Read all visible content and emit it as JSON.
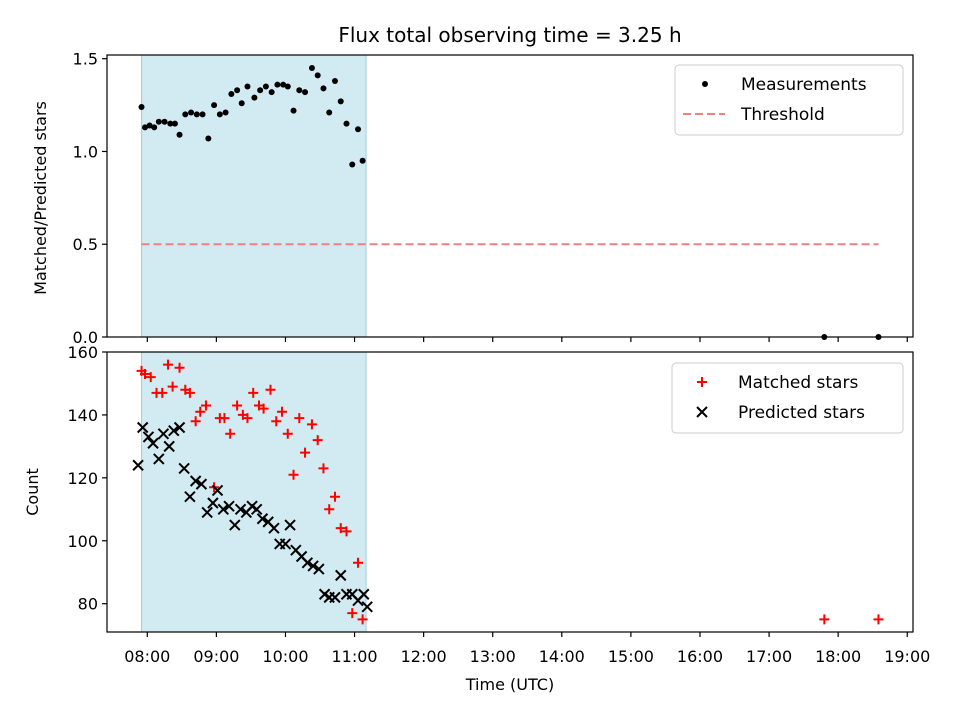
{
  "chart_data": [
    {
      "type": "scatter",
      "title": "Flux total observing time = 3.25 h",
      "xlabel": "",
      "ylabel": "Matched/Predicted stars",
      "ylim": [
        0,
        1.52
      ],
      "yticks": [
        "0.0",
        "0.5",
        "1.0",
        "1.5"
      ],
      "ytick_values": [
        0,
        0.5,
        1.0,
        1.5
      ],
      "legend_position": "top-right",
      "observing_span": [
        "07:55",
        "11:10"
      ],
      "highlight_color": "#add8e6",
      "series": [
        {
          "name": "Measurements",
          "marker": "dot",
          "color": "#000000",
          "x": [
            "07:55",
            "07:58",
            "08:02",
            "08:06",
            "08:10",
            "08:15",
            "08:20",
            "08:24",
            "08:28",
            "08:33",
            "08:38",
            "08:43",
            "08:48",
            "08:53",
            "08:58",
            "09:03",
            "09:08",
            "09:13",
            "09:18",
            "09:22",
            "09:27",
            "09:33",
            "09:38",
            "09:43",
            "09:48",
            "09:53",
            "09:58",
            "10:02",
            "10:07",
            "10:12",
            "10:17",
            "10:23",
            "10:28",
            "10:33",
            "10:38",
            "10:43",
            "10:48",
            "10:53",
            "10:58",
            "11:03",
            "11:07",
            "17:48",
            "18:35"
          ],
          "y": [
            1.24,
            1.13,
            1.14,
            1.13,
            1.16,
            1.16,
            1.15,
            1.15,
            1.09,
            1.2,
            1.21,
            1.2,
            1.2,
            1.07,
            1.25,
            1.2,
            1.21,
            1.31,
            1.33,
            1.26,
            1.35,
            1.29,
            1.33,
            1.35,
            1.32,
            1.36,
            1.36,
            1.35,
            1.22,
            1.33,
            1.32,
            1.45,
            1.41,
            1.34,
            1.21,
            1.38,
            1.27,
            1.15,
            0.93,
            1.12,
            0.95,
            0.0,
            0.0
          ]
        },
        {
          "name": "Threshold",
          "marker": "dashed-line",
          "color": "#f08080",
          "x": [
            "07:55",
            "18:35"
          ],
          "y": [
            0.5,
            0.5
          ]
        }
      ]
    },
    {
      "type": "scatter",
      "title": "",
      "xlabel": "Time (UTC)",
      "ylabel": "Count",
      "ylim": [
        71,
        160
      ],
      "yticks": [
        "80",
        "100",
        "120",
        "140",
        "160"
      ],
      "ytick_values": [
        80,
        100,
        120,
        140,
        160
      ],
      "xlim": [
        "07:25",
        "19:05"
      ],
      "xticks": [
        "08:00",
        "09:00",
        "10:00",
        "11:00",
        "12:00",
        "13:00",
        "14:00",
        "15:00",
        "16:00",
        "17:00",
        "18:00",
        "19:00"
      ],
      "legend_position": "top-right",
      "series": [
        {
          "name": "Matched stars",
          "marker": "plus",
          "color": "#ff0000",
          "x": [
            "07:55",
            "07:58",
            "08:03",
            "08:08",
            "08:13",
            "08:18",
            "08:22",
            "08:28",
            "08:33",
            "08:37",
            "08:42",
            "08:46",
            "08:51",
            "08:58",
            "09:03",
            "09:07",
            "09:12",
            "09:18",
            "09:23",
            "09:27",
            "09:32",
            "09:37",
            "09:41",
            "09:47",
            "09:52",
            "09:57",
            "10:02",
            "10:07",
            "10:12",
            "10:17",
            "10:23",
            "10:28",
            "10:33",
            "10:38",
            "10:43",
            "10:48",
            "10:53",
            "10:58",
            "11:03",
            "11:07",
            "17:48",
            "18:35"
          ],
          "y": [
            154,
            153,
            152,
            147,
            147,
            156,
            149,
            155,
            148,
            147,
            138,
            141,
            143,
            117,
            139,
            139,
            134,
            143,
            140,
            139,
            147,
            143,
            142,
            148,
            138,
            141,
            134,
            121,
            139,
            128,
            137,
            132,
            123,
            110,
            114,
            104,
            103,
            77,
            93,
            75,
            75,
            75
          ]
        },
        {
          "name": "Predicted stars",
          "marker": "x",
          "color": "#000000",
          "x": [
            "07:52",
            "07:56",
            "08:01",
            "08:05",
            "08:10",
            "08:14",
            "08:19",
            "08:23",
            "08:28",
            "08:32",
            "08:37",
            "08:42",
            "08:47",
            "08:52",
            "08:57",
            "09:01",
            "09:06",
            "09:11",
            "09:16",
            "09:21",
            "09:26",
            "09:31",
            "09:35",
            "09:40",
            "09:45",
            "09:50",
            "09:55",
            "10:00",
            "10:04",
            "10:09",
            "10:14",
            "10:19",
            "10:24",
            "10:29",
            "10:34",
            "10:38",
            "10:43",
            "10:48",
            "10:53",
            "10:58",
            "11:03",
            "11:08",
            "11:11"
          ],
          "y": [
            124,
            136,
            133,
            131,
            126,
            134,
            130,
            135,
            136,
            123,
            114,
            119,
            118,
            109,
            112,
            116,
            110,
            111,
            105,
            110,
            109,
            111,
            110,
            107,
            106,
            104,
            99,
            99,
            105,
            97,
            95,
            93,
            92,
            91,
            83,
            82,
            82,
            89,
            83,
            83,
            81,
            83,
            79
          ]
        }
      ]
    }
  ]
}
